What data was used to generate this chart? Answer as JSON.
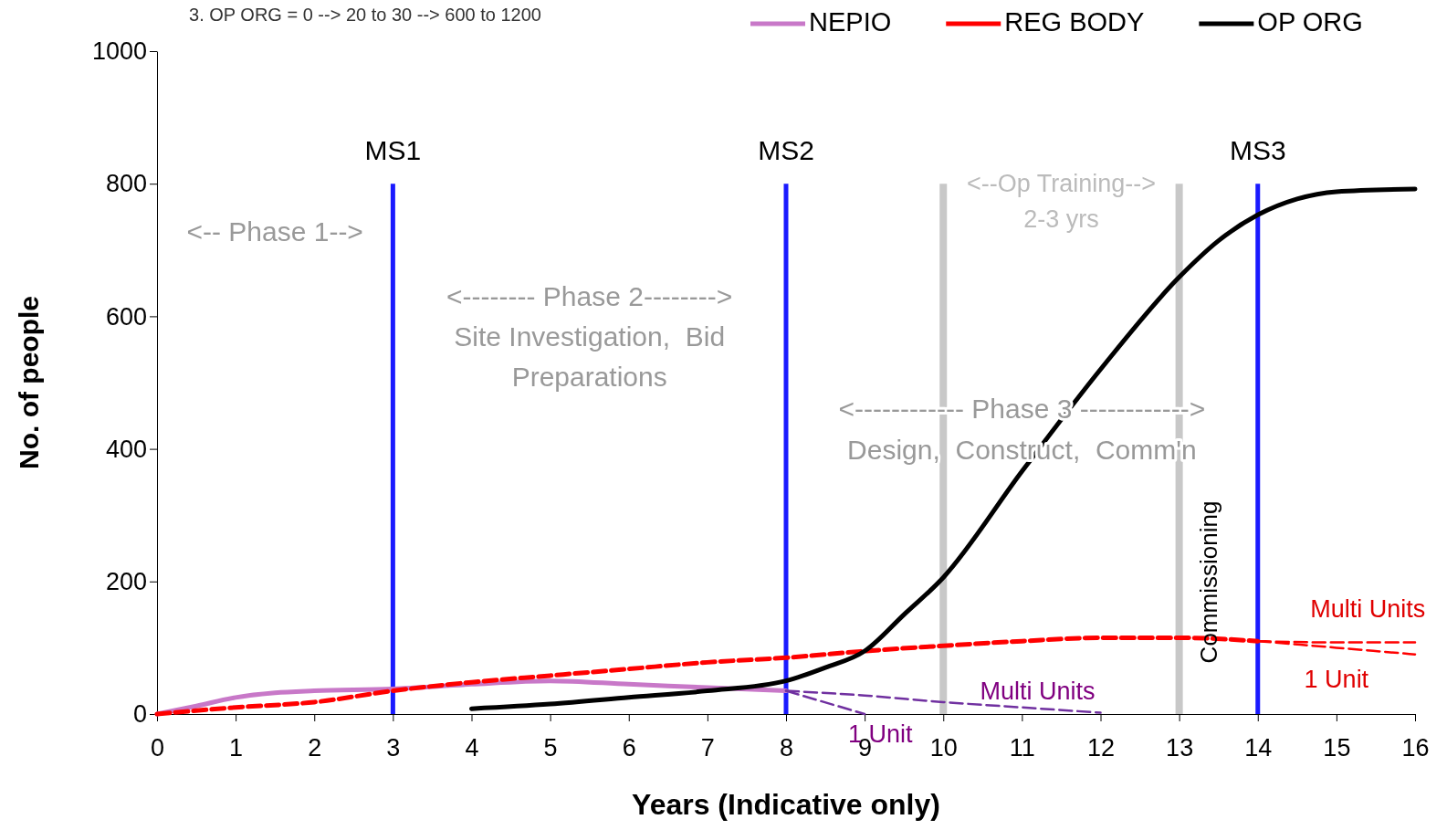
{
  "chart_data": {
    "type": "line",
    "xlabel": "Years (Indicative only)",
    "ylabel": "No. of people",
    "xlim": [
      0,
      16
    ],
    "xticks": [
      0,
      1,
      2,
      3,
      4,
      5,
      6,
      7,
      8,
      9,
      10,
      11,
      12,
      13,
      14,
      15,
      16
    ],
    "ylim": [
      0,
      1000
    ],
    "yticks": [
      0,
      200,
      400,
      600,
      800,
      1000
    ],
    "grid": false,
    "legend": "top right",
    "marker": "none",
    "series": [
      {
        "name": "NEPIO",
        "color": "#c878c8",
        "line_style": "solid",
        "x": [
          0,
          0.5,
          1,
          1.5,
          2,
          3,
          4,
          5,
          6,
          7,
          8
        ],
        "values": [
          0,
          12,
          25,
          32,
          35,
          38,
          45,
          50,
          45,
          40,
          35
        ]
      },
      {
        "name": "REG BODY",
        "color": "#ff0000",
        "line_style": "dashed",
        "x": [
          0,
          1,
          2,
          3,
          4,
          5,
          6,
          7,
          8,
          9,
          10,
          11,
          12,
          13,
          14
        ],
        "values": [
          0,
          10,
          18,
          35,
          48,
          58,
          68,
          78,
          85,
          95,
          103,
          110,
          115,
          115,
          110
        ]
      },
      {
        "name": "OP ORG",
        "color": "#000000",
        "line_style": "solid",
        "x": [
          4,
          5,
          6,
          7,
          8,
          8.5,
          9,
          9.5,
          10,
          11,
          12,
          13,
          13.5,
          14,
          14.5,
          15,
          16
        ],
        "values": [
          8,
          15,
          25,
          35,
          50,
          70,
          95,
          150,
          206,
          366,
          520,
          659,
          714,
          753,
          777,
          788,
          792
        ]
      },
      {
        "color": "#7030a0",
        "line_style": "dashed",
        "x": [
          8,
          9,
          10,
          11,
          12
        ],
        "values": [
          35,
          28,
          18,
          10,
          2
        ]
      },
      {
        "color": "#7030a0",
        "line_style": "dashed",
        "x": [
          8,
          9
        ],
        "values": [
          35,
          0
        ]
      },
      {
        "color": "#ff0000",
        "line_style": "dashed",
        "x": [
          14,
          15,
          16
        ],
        "values": [
          110,
          108,
          108
        ]
      },
      {
        "color": "#ff0000",
        "line_style": "dashed",
        "x": [
          14,
          15,
          16
        ],
        "values": [
          110,
          100,
          90
        ]
      }
    ],
    "ref_lines": [
      {
        "axis": "x",
        "value": 3,
        "label": "MS1",
        "color": "#1a1aff"
      },
      {
        "axis": "x",
        "value": 8,
        "label": "MS2",
        "color": "#1a1aff"
      },
      {
        "axis": "x",
        "value": 14,
        "label": "MS3",
        "color": "#1a1aff"
      },
      {
        "axis": "x",
        "value": 10,
        "color": "#c8c8c8"
      },
      {
        "axis": "x",
        "value": 13,
        "color": "#c8c8c8"
      }
    ],
    "annotations": [
      "3. OP ORG = 0 --> 20 to 30 --> 600 to 1200",
      "<-- Phase 1-->",
      "<-------- Phase 2-------->\nSite Investigation,  Bid\nPreparations",
      "<--Op Training-->\n2-3 yrs",
      "<------------ Phase 3 ------------>\nDesign,  Construct,  Comm'n",
      "Commissioning",
      "Multi Units",
      "1 Unit",
      "Multi Units",
      "1 Unit"
    ]
  }
}
